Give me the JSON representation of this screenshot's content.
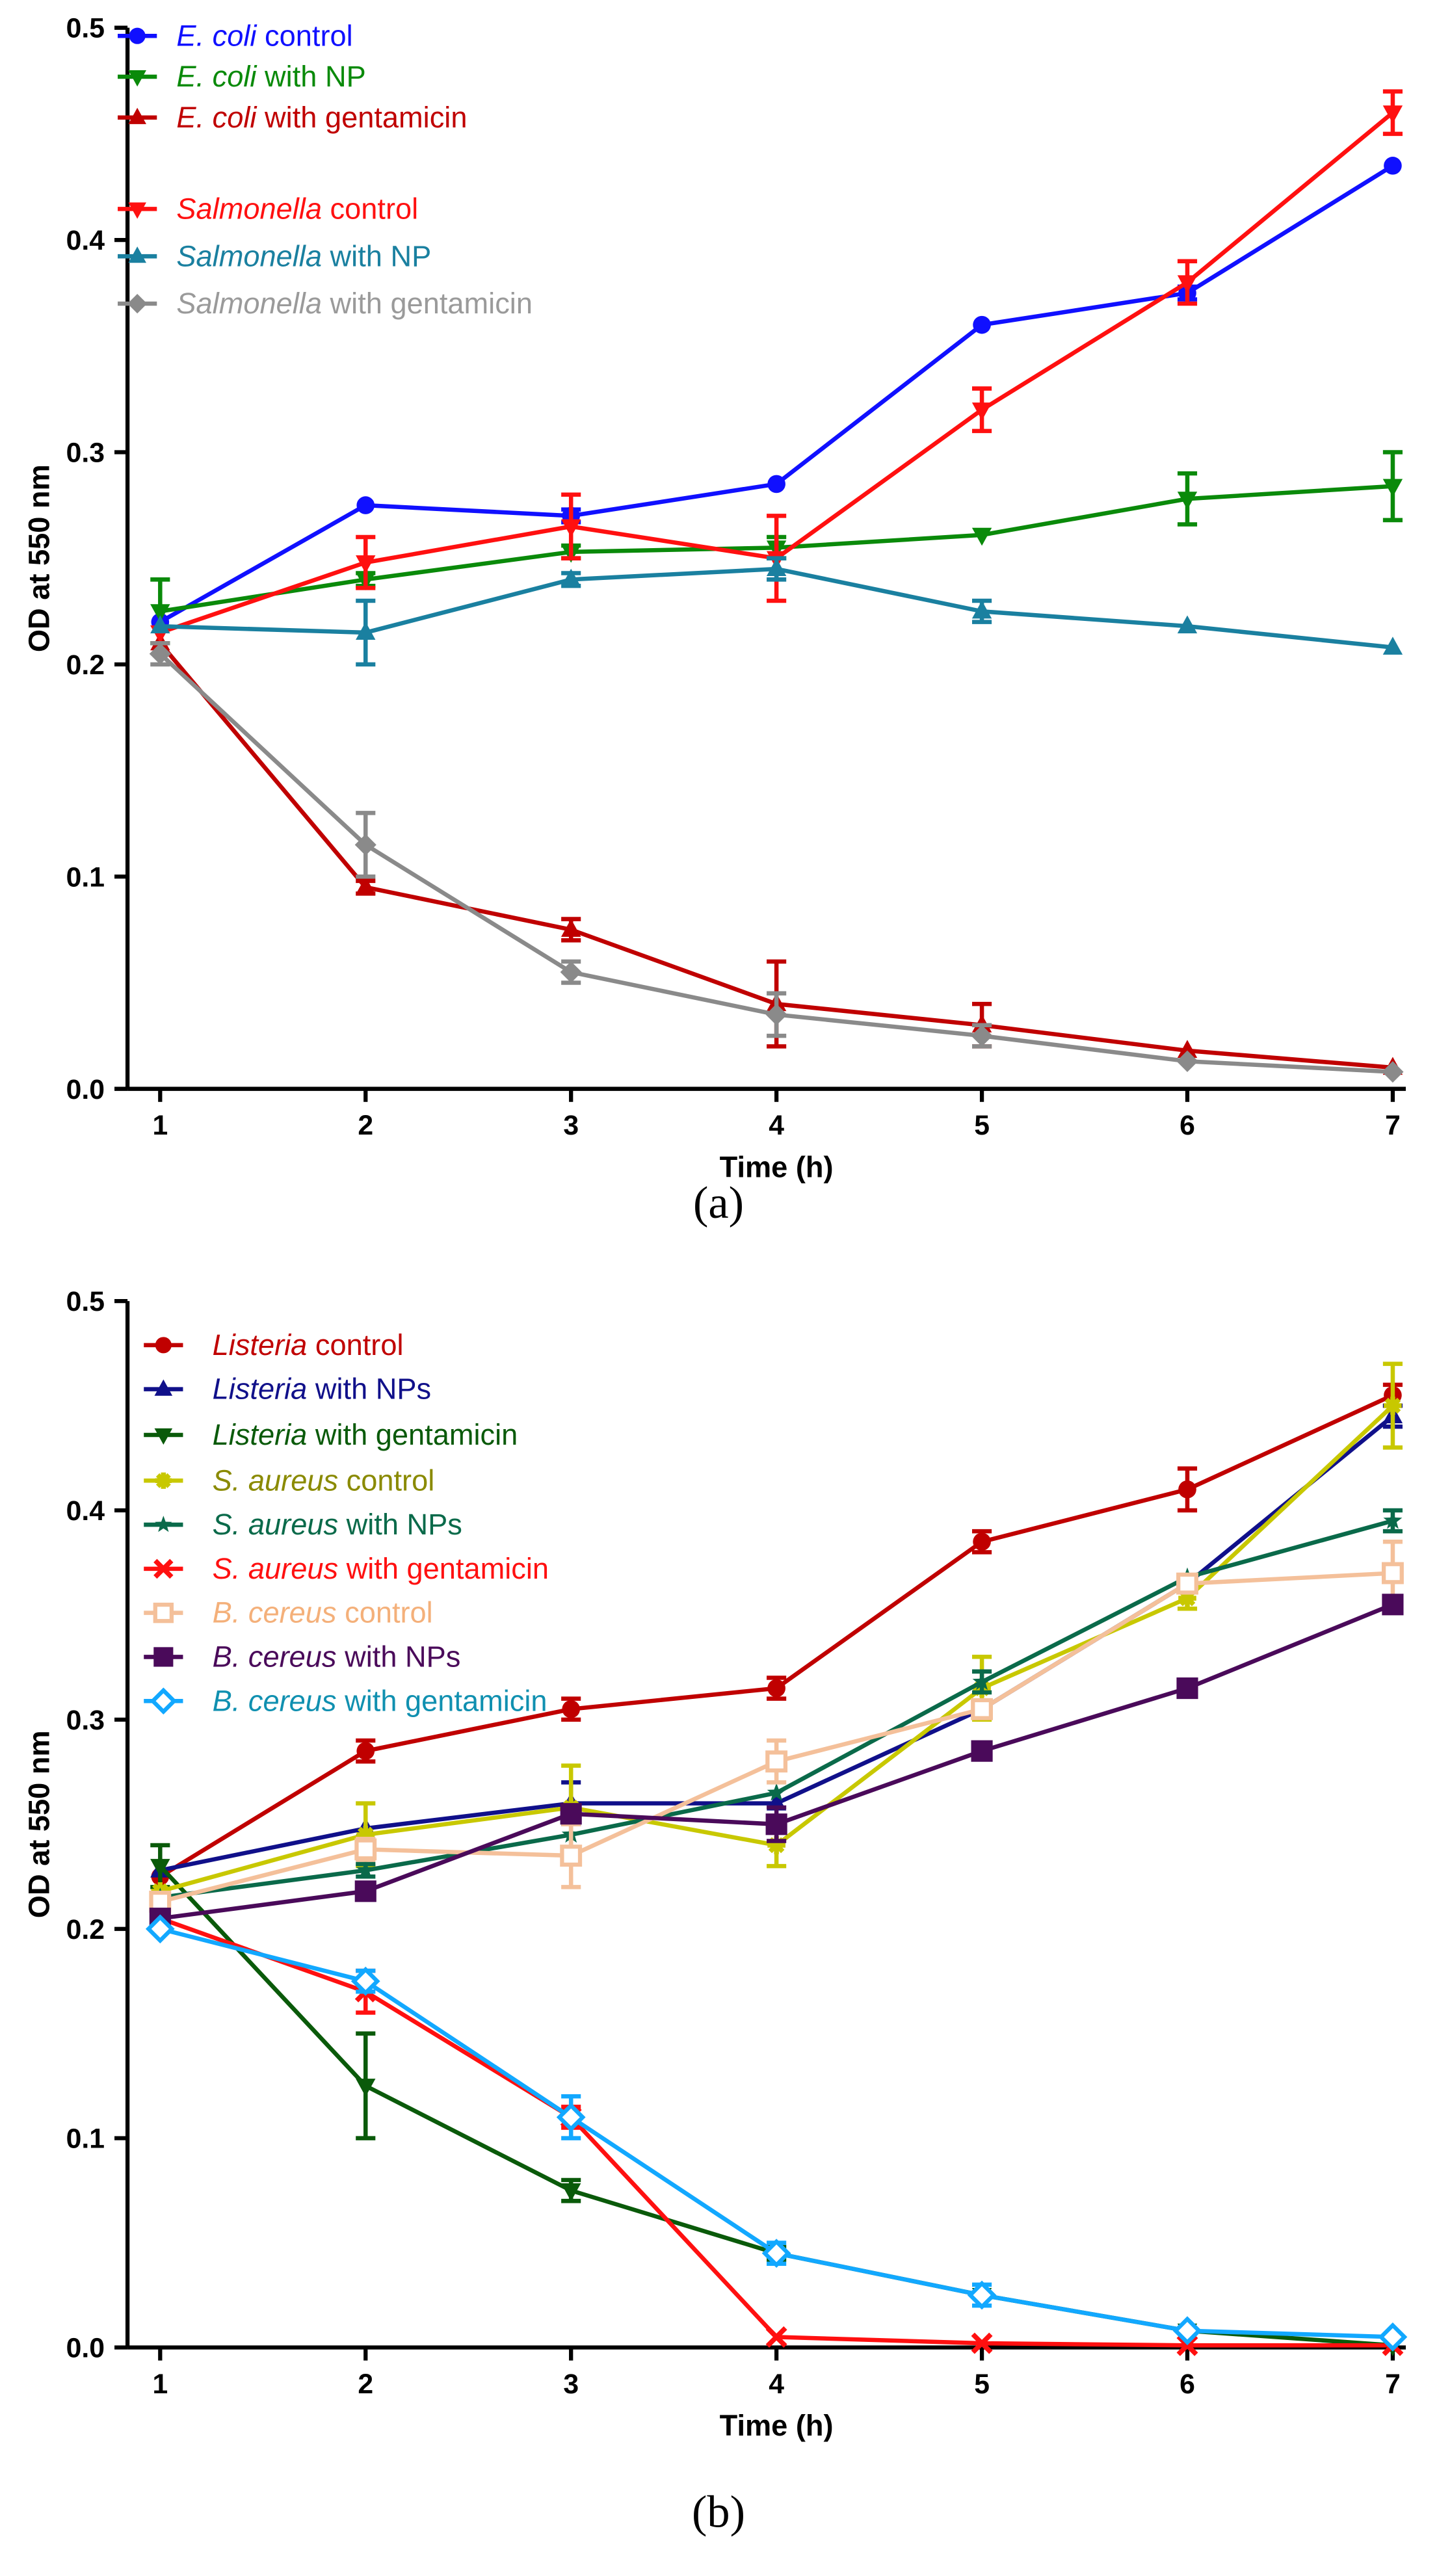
{
  "chart_data": [
    {
      "type": "line",
      "panel_label": "a",
      "caption": "(a)",
      "xlabel": "Time (h)",
      "ylabel": "OD at 550 nm",
      "xlim": [
        1,
        7
      ],
      "ylim": [
        0,
        0.5
      ],
      "xticks": [
        "1",
        "2",
        "3",
        "4",
        "5",
        "6",
        "7"
      ],
      "yticks": [
        "0.0",
        "0.1",
        "0.2",
        "0.3",
        "0.4",
        "0.5"
      ],
      "legend_position": "top-left",
      "x": [
        1,
        2,
        3,
        4,
        5,
        6,
        7
      ],
      "series": [
        {
          "italic": "E. coli",
          "rest": " control",
          "color": "#1010ff",
          "label_color": "#1010ff",
          "marker": "circle",
          "values": [
            0.22,
            0.275,
            0.27,
            0.285,
            0.36,
            0.375,
            0.435
          ],
          "errors": [
            0,
            0,
            0.003,
            0,
            0,
            0.003,
            0
          ]
        },
        {
          "italic": "E. coli",
          "rest": " with NP",
          "color": "#0a8a0a",
          "label_color": "#0a8a0a",
          "marker": "tri-down",
          "values": [
            0.225,
            0.24,
            0.253,
            0.255,
            0.261,
            0.278,
            0.284
          ],
          "errors": [
            0.015,
            0.003,
            0.003,
            0.005,
            0,
            0.012,
            0.016
          ]
        },
        {
          "italic": "E. coli",
          "rest": " with gentamicin",
          "color": "#c00000",
          "label_color": "#c00000",
          "marker": "tri-up",
          "values": [
            0.21,
            0.095,
            0.075,
            0.04,
            0.03,
            0.018,
            0.01
          ],
          "errors": [
            0,
            0.003,
            0.005,
            0.02,
            0.01,
            0,
            0
          ]
        },
        {
          "italic": "Salmonella",
          "rest": " control",
          "color": "#ff1010",
          "label_color": "#ff1010",
          "marker": "tri-down",
          "values": [
            0.215,
            0.248,
            0.265,
            0.25,
            0.32,
            0.38,
            0.46
          ],
          "errors": [
            0,
            0.012,
            0.015,
            0.02,
            0.01,
            0.01,
            0.01
          ]
        },
        {
          "italic": "Salmonella",
          "rest": " with NP",
          "color": "#1a80a0",
          "label_color": "#1a80a0",
          "marker": "tri-up",
          "values": [
            0.218,
            0.215,
            0.24,
            0.245,
            0.225,
            0.218,
            0.208
          ],
          "errors": [
            0,
            0.015,
            0.003,
            0.005,
            0.005,
            0,
            0
          ]
        },
        {
          "italic": "Salmonella",
          "rest": " with gentamicin",
          "color": "#8a8a8a",
          "label_color": "#9a9a9a",
          "marker": "diamond",
          "values": [
            0.205,
            0.115,
            0.055,
            0.035,
            0.025,
            0.013,
            0.008
          ],
          "errors": [
            0.005,
            0.015,
            0.005,
            0.01,
            0.005,
            0,
            0
          ]
        }
      ]
    },
    {
      "type": "line",
      "panel_label": "b",
      "caption": "(b)",
      "xlabel": "Time (h)",
      "ylabel": "OD at 550 nm",
      "xlim": [
        1,
        7
      ],
      "ylim": [
        0,
        0.5
      ],
      "xticks": [
        "1",
        "2",
        "3",
        "4",
        "5",
        "6",
        "7"
      ],
      "yticks": [
        "0.0",
        "0.1",
        "0.2",
        "0.3",
        "0.4",
        "0.5"
      ],
      "legend_position": "top-left",
      "x": [
        1,
        2,
        3,
        4,
        5,
        6,
        7
      ],
      "series": [
        {
          "italic": "Listeria",
          "rest": "  control",
          "color": "#c00000",
          "label_color": "#c00000",
          "marker": "circle",
          "values": [
            0.225,
            0.285,
            0.305,
            0.315,
            0.385,
            0.41,
            0.455
          ],
          "errors": [
            0,
            0.005,
            0.005,
            0.005,
            0.005,
            0.01,
            0.005
          ]
        },
        {
          "italic": "Listeria",
          "rest": " with NPs",
          "color": "#10108a",
          "label_color": "#10108a",
          "marker": "tri-up",
          "values": [
            0.228,
            0.248,
            0.26,
            0.26,
            0.305,
            0.365,
            0.445
          ],
          "errors": [
            0,
            0,
            0.01,
            0,
            0,
            0,
            0.005
          ]
        },
        {
          "italic": "Listeria",
          "rest": " with gentamicin",
          "color": "#0a5a0a",
          "label_color": "#0a5a0a",
          "marker": "tri-down",
          "values": [
            0.23,
            0.125,
            0.075,
            0.045,
            0.025,
            0.008,
            0.001
          ],
          "errors": [
            0.01,
            0.025,
            0.005,
            0.003,
            0,
            0,
            0
          ]
        },
        {
          "italic": "S. aureus",
          "rest": " control",
          "color": "#c8c800",
          "label_color": "#8a8a00",
          "marker": "asterisk",
          "values": [
            0.218,
            0.245,
            0.258,
            0.24,
            0.315,
            0.358,
            0.45
          ],
          "errors": [
            0,
            0.015,
            0.02,
            0.01,
            0.015,
            0.005,
            0.02
          ]
        },
        {
          "italic": "S. aureus",
          "rest": " with NPs",
          "color": "#0a6a4a",
          "label_color": "#0a6a4a",
          "marker": "star",
          "values": [
            0.215,
            0.228,
            0.245,
            0.265,
            0.318,
            0.368,
            0.395
          ],
          "errors": [
            0,
            0.003,
            0,
            0,
            0.005,
            0,
            0.005
          ]
        },
        {
          "italic": "S. aureus",
          "rest": " with gentamicin",
          "color": "#ff1010",
          "label_color": "#ff1010",
          "marker": "x",
          "values": [
            0.205,
            0.17,
            0.11,
            0.005,
            0.002,
            0.001,
            0.001
          ],
          "errors": [
            0,
            0.01,
            0.005,
            0,
            0,
            0,
            0
          ]
        },
        {
          "italic": "B. cereus",
          "rest": " control",
          "color": "#f4c09a",
          "label_color": "#f4b07a",
          "marker": "square-open",
          "values": [
            0.213,
            0.238,
            0.235,
            0.28,
            0.305,
            0.365,
            0.37
          ],
          "errors": [
            0.003,
            0.005,
            0.015,
            0.01,
            0.003,
            0,
            0.015
          ]
        },
        {
          "italic": "B. cereus",
          "rest": " with NPs",
          "color": "#4a0a5a",
          "label_color": "#4a0a5a",
          "marker": "square",
          "values": [
            0.205,
            0.218,
            0.255,
            0.25,
            0.285,
            0.315,
            0.355
          ],
          "errors": [
            0,
            0,
            0,
            0.008,
            0,
            0,
            0
          ]
        },
        {
          "italic": "B. cereus",
          "rest": " with gentamicin",
          "color": "#12a8ff",
          "label_color": "#1090b0",
          "marker": "diamond-open",
          "values": [
            0.2,
            0.175,
            0.11,
            0.045,
            0.025,
            0.008,
            0.005
          ],
          "errors": [
            0,
            0.005,
            0.01,
            0.005,
            0.005,
            0,
            0
          ]
        }
      ]
    }
  ]
}
